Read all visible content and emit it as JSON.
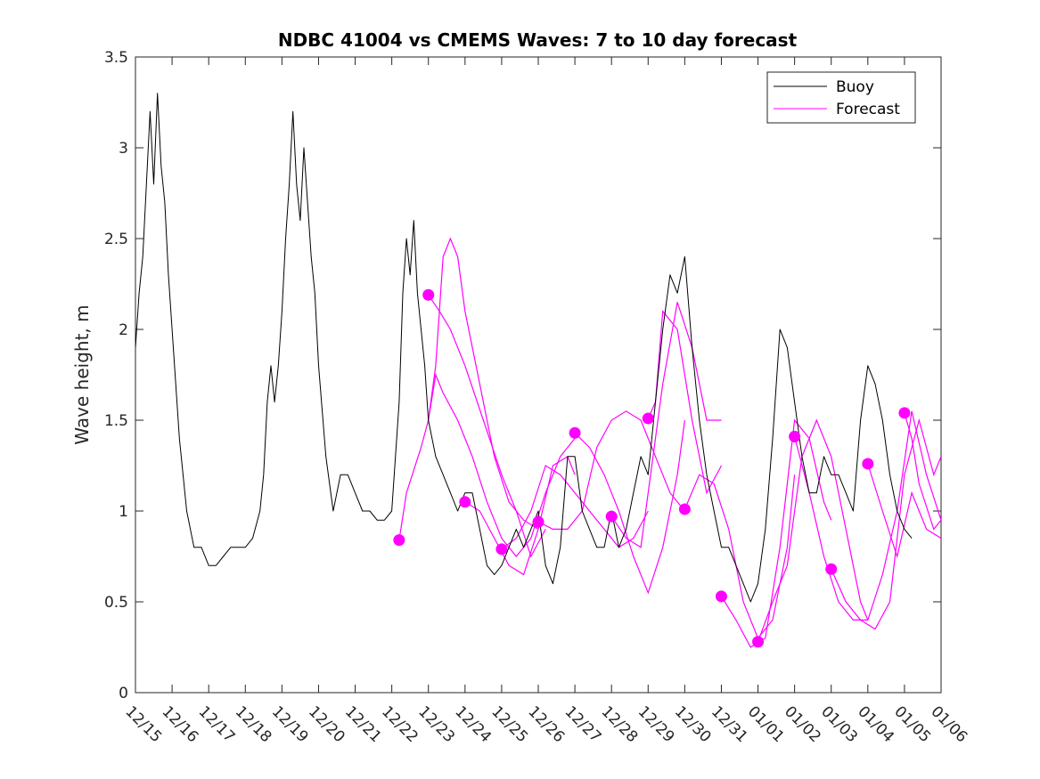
{
  "chart_data": {
    "type": "line",
    "title": "NDBC 41004 vs CMEMS Waves: 7 to 10 day forecast",
    "xlabel": "",
    "ylabel": "Wave height, m",
    "xlim": [
      0,
      22
    ],
    "ylim": [
      0,
      3.5
    ],
    "yticks": [
      "0",
      "0.5",
      "1",
      "1.5",
      "2",
      "2.5",
      "3",
      "3.5"
    ],
    "xticks": [
      "12/15",
      "12/16",
      "12/17",
      "12/18",
      "12/19",
      "12/20",
      "12/21",
      "12/22",
      "12/23",
      "12/24",
      "12/25",
      "12/26",
      "12/27",
      "12/28",
      "12/29",
      "12/30",
      "12/31",
      "01/01",
      "01/02",
      "01/03",
      "01/04",
      "01/05",
      "01/06"
    ],
    "legend": {
      "position": "top-right",
      "entries": [
        "Buoy",
        "Forecast"
      ]
    },
    "colors": {
      "buoy": "#000000",
      "forecast": "#ff00ff"
    },
    "buoy": {
      "name": "Buoy",
      "x": [
        0,
        0.1,
        0.2,
        0.3,
        0.4,
        0.5,
        0.6,
        0.7,
        0.8,
        0.9,
        1.0,
        1.1,
        1.2,
        1.4,
        1.6,
        1.8,
        2.0,
        2.2,
        2.4,
        2.6,
        2.8,
        3.0,
        3.2,
        3.4,
        3.5,
        3.6,
        3.7,
        3.8,
        3.9,
        4.0,
        4.1,
        4.2,
        4.3,
        4.4,
        4.5,
        4.6,
        4.7,
        4.8,
        4.9,
        5.0,
        5.2,
        5.4,
        5.6,
        5.8,
        6.0,
        6.2,
        6.4,
        6.6,
        6.8,
        7.0,
        7.2,
        7.3,
        7.4,
        7.5,
        7.6,
        7.7,
        7.8,
        7.9,
        8.0,
        8.2,
        8.4,
        8.6,
        8.8,
        9.0,
        9.2,
        9.4,
        9.6,
        9.8,
        10.0,
        10.2,
        10.4,
        10.6,
        10.8,
        11.0,
        11.2,
        11.4,
        11.6,
        11.8,
        12.0,
        12.2,
        12.4,
        12.6,
        12.8,
        13.0,
        13.2,
        13.4,
        13.6,
        13.8,
        14.0,
        14.2,
        14.4,
        14.6,
        14.8,
        15.0,
        15.2,
        15.4,
        15.6,
        15.8,
        16.0,
        16.2,
        16.4,
        16.6,
        16.8,
        17.0,
        17.2,
        17.4,
        17.6,
        17.8,
        18.0,
        18.2,
        18.4,
        18.6,
        18.8,
        19.0,
        19.2,
        19.4,
        19.6,
        19.8,
        20.0,
        20.2,
        20.4,
        20.6,
        20.8,
        21.0,
        21.2
      ],
      "y": [
        1.9,
        2.2,
        2.4,
        2.8,
        3.2,
        2.8,
        3.3,
        2.9,
        2.7,
        2.3,
        2.0,
        1.7,
        1.4,
        1.0,
        0.8,
        0.8,
        0.7,
        0.7,
        0.75,
        0.8,
        0.8,
        0.8,
        0.85,
        1.0,
        1.2,
        1.6,
        1.8,
        1.6,
        1.8,
        2.1,
        2.5,
        2.8,
        3.2,
        2.8,
        2.6,
        3.0,
        2.7,
        2.4,
        2.2,
        1.8,
        1.3,
        1.0,
        1.2,
        1.2,
        1.1,
        1.0,
        1.0,
        0.95,
        0.95,
        1.0,
        1.6,
        2.2,
        2.5,
        2.3,
        2.6,
        2.2,
        2.0,
        1.8,
        1.5,
        1.3,
        1.2,
        1.1,
        1.0,
        1.1,
        1.1,
        0.9,
        0.7,
        0.65,
        0.7,
        0.8,
        0.9,
        0.8,
        0.9,
        1.0,
        0.7,
        0.6,
        0.8,
        1.3,
        1.3,
        1.0,
        0.9,
        0.8,
        0.8,
        1.0,
        0.8,
        0.9,
        1.1,
        1.3,
        1.2,
        1.6,
        2.0,
        2.3,
        2.2,
        2.4,
        1.9,
        1.5,
        1.2,
        1.0,
        0.8,
        0.8,
        0.7,
        0.6,
        0.5,
        0.6,
        0.9,
        1.4,
        2.0,
        1.9,
        1.6,
        1.3,
        1.1,
        1.1,
        1.3,
        1.2,
        1.2,
        1.1,
        1.0,
        1.5,
        1.8,
        1.7,
        1.5,
        1.2,
        1.0,
        0.9,
        0.85
      ]
    },
    "forecast_segments": [
      {
        "x": [
          7.2,
          7.4,
          7.8,
          8.0,
          8.2,
          8.4,
          8.6,
          8.8,
          9.0,
          9.4,
          9.8,
          10.2,
          10.6,
          11.0
        ],
        "y": [
          0.84,
          1.1,
          1.35,
          1.5,
          1.8,
          2.4,
          2.5,
          2.4,
          2.1,
          1.7,
          1.3,
          1.05,
          0.95,
          0.9
        ]
      },
      {
        "x": [
          8.0,
          8.2,
          8.4,
          8.8,
          9.2,
          9.6,
          10.0,
          10.4,
          10.8,
          11.2,
          11.6,
          12.0
        ],
        "y": [
          1.5,
          1.75,
          1.65,
          1.5,
          1.3,
          1.05,
          0.85,
          0.75,
          0.85,
          1.1,
          1.3,
          1.4
        ]
      },
      {
        "x": [
          8.0,
          8.3,
          8.6,
          9.0,
          9.5,
          10.0,
          10.4,
          10.8,
          11.2
        ],
        "y": [
          2.19,
          2.1,
          2.0,
          1.8,
          1.5,
          1.2,
          1.0,
          0.75,
          0.9
        ]
      },
      {
        "x": [
          9.0,
          9.4,
          9.8,
          10.2,
          10.6,
          11.0,
          11.4,
          11.8,
          12.0
        ],
        "y": [
          1.05,
          1.0,
          0.85,
          0.7,
          0.65,
          0.9,
          1.25,
          1.3,
          1.2
        ]
      },
      {
        "x": [
          10.0,
          10.4,
          10.8,
          11.2,
          11.6,
          12.0,
          12.4,
          12.8,
          13.2,
          13.6,
          14.0
        ],
        "y": [
          0.79,
          0.85,
          1.0,
          1.25,
          1.2,
          1.1,
          1.0,
          0.9,
          0.8,
          0.85,
          1.0
        ]
      },
      {
        "x": [
          11.0,
          11.4,
          11.8,
          12.2,
          12.6,
          13.0,
          13.4,
          13.8,
          14.2,
          14.6,
          15.0
        ],
        "y": [
          0.94,
          0.9,
          0.9,
          1.0,
          1.35,
          1.5,
          1.55,
          1.5,
          1.3,
          1.1,
          1.0
        ]
      },
      {
        "x": [
          12.0,
          12.4,
          12.8,
          13.2,
          13.6,
          14.0,
          14.4,
          14.8,
          15.0
        ],
        "y": [
          1.43,
          1.35,
          1.2,
          1.0,
          0.75,
          0.55,
          0.8,
          1.2,
          1.5
        ]
      },
      {
        "x": [
          13.0,
          13.4,
          13.8,
          14.2,
          14.4,
          14.8,
          15.2,
          15.6,
          16.0
        ],
        "y": [
          0.97,
          0.85,
          0.8,
          1.4,
          1.7,
          2.15,
          1.9,
          1.5,
          1.5
        ]
      },
      {
        "x": [
          14.0,
          14.2,
          14.4,
          14.8,
          15.2,
          15.6,
          16.0
        ],
        "y": [
          1.51,
          1.6,
          2.1,
          2.0,
          1.5,
          1.1,
          1.25
        ]
      },
      {
        "x": [
          15.0,
          15.4,
          15.8,
          16.2,
          16.6,
          17.0,
          17.4,
          17.8,
          18.0
        ],
        "y": [
          1.01,
          1.2,
          1.15,
          0.9,
          0.5,
          0.3,
          0.4,
          0.8,
          1.2
        ]
      },
      {
        "x": [
          16.0,
          16.4,
          16.8,
          17.2,
          17.6,
          18.0,
          18.4,
          18.8,
          19.0
        ],
        "y": [
          0.53,
          0.4,
          0.25,
          0.3,
          0.8,
          1.5,
          1.4,
          1.05,
          0.95
        ]
      },
      {
        "x": [
          17.0,
          17.4,
          17.8,
          18.2,
          18.6,
          19.0,
          19.4,
          19.8,
          20.0
        ],
        "y": [
          0.28,
          0.5,
          0.7,
          1.3,
          1.5,
          1.3,
          0.9,
          0.5,
          0.4
        ]
      },
      {
        "x": [
          18.0,
          18.4,
          18.8,
          19.2,
          19.6,
          20.0,
          20.4,
          20.8,
          21.2,
          21.6,
          22.0
        ],
        "y": [
          1.41,
          1.1,
          0.75,
          0.5,
          0.4,
          0.4,
          0.65,
          1.0,
          1.55,
          1.2,
          0.95
        ]
      },
      {
        "x": [
          19.0,
          19.4,
          19.8,
          20.2,
          20.6,
          21.0,
          21.4,
          21.8,
          22.0
        ],
        "y": [
          0.68,
          0.5,
          0.4,
          0.35,
          0.5,
          1.2,
          1.5,
          1.2,
          1.3
        ]
      },
      {
        "x": [
          20.0,
          20.4,
          20.8,
          21.2,
          21.6,
          22.0
        ],
        "y": [
          1.26,
          1.0,
          0.75,
          1.1,
          0.9,
          0.85
        ]
      },
      {
        "x": [
          21.0,
          21.2,
          21.4,
          21.8,
          22.0
        ],
        "y": [
          1.54,
          1.4,
          1.15,
          0.9,
          0.95
        ]
      }
    ],
    "forecast_markers": {
      "x": [
        7.2,
        8.0,
        9.0,
        10.0,
        11.0,
        12.0,
        13.0,
        14.0,
        15.0,
        16.0,
        17.0,
        18.0,
        19.0,
        20.0,
        21.0
      ],
      "y": [
        0.84,
        2.19,
        1.05,
        0.79,
        0.94,
        1.43,
        0.97,
        1.51,
        1.01,
        0.53,
        0.28,
        1.41,
        0.68,
        1.26,
        1.54
      ]
    }
  }
}
